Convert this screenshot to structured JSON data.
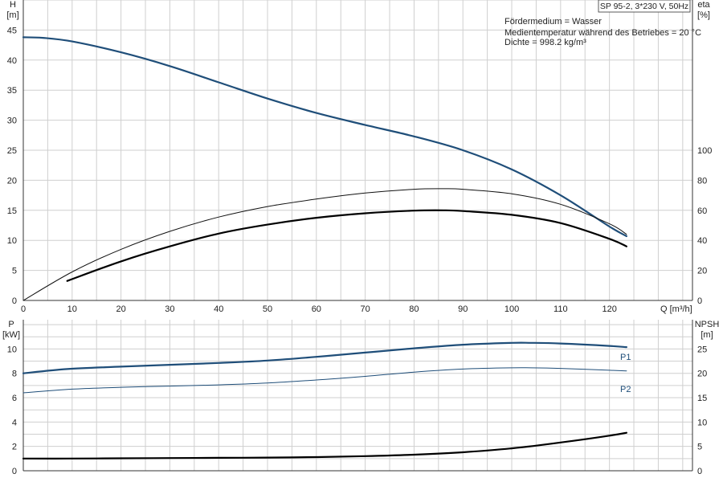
{
  "chart_data": [
    {
      "type": "line",
      "x_axis": {
        "label": "Q [m³/h]",
        "ticks": [
          0,
          10,
          20,
          30,
          40,
          50,
          60,
          70,
          80,
          90,
          100,
          110,
          120
        ],
        "range": [
          0,
          137
        ]
      },
      "y_left": {
        "title": "H",
        "unit": "[m]",
        "ticks": [
          0,
          5,
          10,
          15,
          20,
          25,
          30,
          35,
          40,
          45
        ],
        "range": [
          0,
          50
        ]
      },
      "y_right": {
        "title": "eta",
        "unit": "[%]",
        "ticks": [
          0,
          20,
          40,
          60,
          80,
          100
        ],
        "range": [
          0,
          200
        ]
      },
      "grid": true,
      "title_box": "SP 95-2, 3*230 V, 50Hz",
      "annotations": [
        "Fördermedium = Wasser",
        "Medientemperatur während des Betriebes = 20 °C",
        "Dichte = 998.2 kg/m³"
      ],
      "series": [
        {
          "key": "head",
          "axis": "left",
          "color": "#1f4e79",
          "width": 2.2,
          "x": [
            0,
            4,
            10,
            20,
            30,
            40,
            50,
            60,
            70,
            80,
            90,
            100,
            110,
            120,
            123.5
          ],
          "y": [
            43.8,
            43.7,
            43.1,
            41.3,
            39.0,
            36.3,
            33.6,
            31.2,
            29.2,
            27.3,
            25.0,
            21.8,
            17.5,
            12.3,
            10.7
          ]
        },
        {
          "key": "eta_total",
          "axis": "right",
          "color": "#111111",
          "width": 1.0,
          "x": [
            0,
            10,
            20,
            30,
            40,
            50,
            60,
            70,
            80,
            86,
            90,
            100,
            110,
            120,
            123.5
          ],
          "y": [
            0,
            19,
            34,
            46,
            55.5,
            62.5,
            67.5,
            71.5,
            74,
            74.4,
            74,
            71,
            64,
            51,
            44
          ]
        },
        {
          "key": "eta_pump",
          "axis": "right",
          "color": "#000000",
          "width": 2.2,
          "x": [
            9,
            20,
            30,
            40,
            50,
            60,
            70,
            80,
            86,
            90,
            100,
            110,
            120,
            123.5
          ],
          "y": [
            13,
            26,
            36,
            44.5,
            50.5,
            55,
            58,
            59.8,
            60,
            59.5,
            57,
            51.5,
            41,
            36
          ]
        }
      ]
    },
    {
      "type": "line",
      "x_axis": {
        "range": [
          0,
          137
        ]
      },
      "y_left": {
        "title": "P",
        "unit": "[kW]",
        "ticks": [
          0,
          2,
          4,
          6,
          8,
          10
        ],
        "range": [
          0,
          12.4
        ]
      },
      "y_right": {
        "title": "NPSH",
        "unit": "[m]",
        "ticks": [
          0,
          5,
          10,
          15,
          20,
          25
        ],
        "range": [
          0,
          31
        ]
      },
      "grid": true,
      "series": [
        {
          "key": "P1",
          "name": "P1",
          "axis": "left",
          "color": "#1f4e79",
          "width": 2.2,
          "x": [
            0,
            9,
            20,
            30,
            40,
            50,
            60,
            70,
            80,
            90,
            100,
            104,
            110,
            120,
            123.5
          ],
          "y": [
            8.0,
            8.35,
            8.55,
            8.7,
            8.85,
            9.05,
            9.35,
            9.7,
            10.05,
            10.35,
            10.5,
            10.5,
            10.45,
            10.25,
            10.15
          ]
        },
        {
          "key": "P2",
          "name": "P2",
          "axis": "left",
          "color": "#1f4e79",
          "width": 1.0,
          "x": [
            0,
            10,
            20,
            30,
            40,
            50,
            60,
            70,
            80,
            90,
            100,
            104,
            110,
            120,
            123.5
          ],
          "y": [
            6.4,
            6.7,
            6.85,
            6.95,
            7.05,
            7.2,
            7.45,
            7.75,
            8.1,
            8.35,
            8.45,
            8.45,
            8.4,
            8.25,
            8.2
          ]
        },
        {
          "key": "NPSH",
          "axis": "right",
          "color": "#000000",
          "width": 2.2,
          "x": [
            0,
            9,
            20,
            30,
            40,
            50,
            60,
            70,
            80,
            90,
            100,
            110,
            120,
            123.5
          ],
          "y": [
            2.5,
            2.5,
            2.55,
            2.6,
            2.65,
            2.7,
            2.8,
            3.0,
            3.3,
            3.8,
            4.6,
            5.8,
            7.2,
            7.8
          ]
        }
      ]
    }
  ]
}
